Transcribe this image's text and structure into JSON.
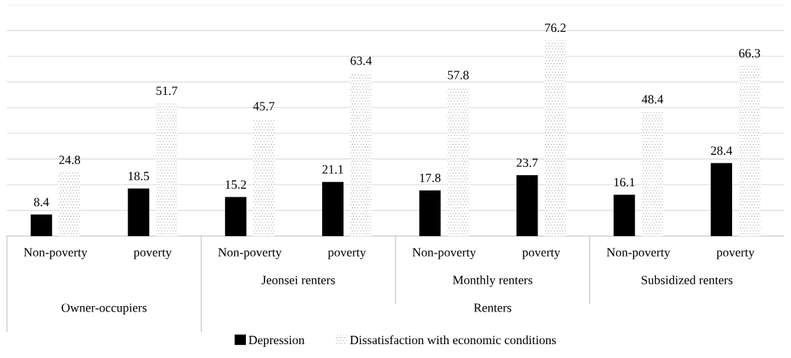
{
  "chart_data": {
    "type": "bar",
    "categories": [
      "Non-poverty",
      "poverty",
      "Non-poverty",
      "poverty",
      "Non-poverty",
      "poverty",
      "Non-poverty",
      "poverty"
    ],
    "series": [
      {
        "name": "Depression",
        "color": "#000000",
        "values": [
          8.4,
          18.5,
          15.2,
          21.1,
          17.8,
          23.7,
          16.1,
          28.4
        ]
      },
      {
        "name": "Dissatisfaction with economic conditions",
        "color": "#ffffff",
        "values": [
          24.8,
          51.7,
          45.7,
          63.4,
          57.8,
          76.2,
          48.4,
          66.3
        ]
      }
    ],
    "annotations": [
      "Owner-occupiers",
      "Jeonsei renters",
      "Monthly renters",
      "Subsidized renters",
      "Renters"
    ],
    "ylim": [
      0,
      90
    ],
    "yticks": [
      {
        "value": 0,
        "label": null
      },
      {
        "value": 10,
        "label": null
      },
      {
        "value": 20,
        "label": null
      },
      {
        "value": 30,
        "label": null
      },
      {
        "value": 40,
        "label": null
      },
      {
        "value": 50,
        "label": null
      },
      {
        "value": 60,
        "label": null
      },
      {
        "value": 70,
        "label": null
      },
      {
        "value": 80,
        "label": null
      },
      {
        "value": 90,
        "label": null
      }
    ],
    "tick_labels": "x",
    "grid": "y",
    "data_labels": true,
    "legend": "bottom"
  }
}
